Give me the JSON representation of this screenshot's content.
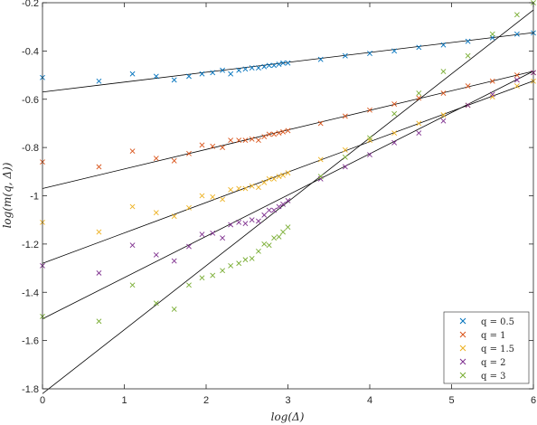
{
  "chart_data": {
    "type": "scatter",
    "title": "",
    "xlabel": "log(Δ)",
    "ylabel": "log(m(q, Δ))",
    "xlim": [
      0,
      6
    ],
    "ylim": [
      -1.8,
      -0.2
    ],
    "xticks": [
      "0",
      "1",
      "2",
      "3",
      "4",
      "5",
      "6"
    ],
    "yticks": [
      "-1.8",
      "-1.6",
      "-1.4",
      "-1.2",
      "-1",
      "-0.8",
      "-0.6",
      "-0.4",
      "-0.2"
    ],
    "grid": false,
    "legend_position": "bottom-right",
    "marker": "x",
    "series": [
      {
        "name": "q = 0.5",
        "color": "#0072BD",
        "fit": {
          "intercept": -0.57,
          "slope": 0.041
        },
        "points": [
          [
            0,
            -0.51
          ],
          [
            0.69,
            -0.525
          ],
          [
            1.1,
            -0.495
          ],
          [
            1.39,
            -0.505
          ],
          [
            1.61,
            -0.52
          ],
          [
            1.79,
            -0.505
          ],
          [
            1.95,
            -0.495
          ],
          [
            2.08,
            -0.49
          ],
          [
            2.2,
            -0.48
          ],
          [
            2.3,
            -0.495
          ],
          [
            2.4,
            -0.48
          ],
          [
            2.48,
            -0.475
          ],
          [
            2.56,
            -0.47
          ],
          [
            2.64,
            -0.47
          ],
          [
            2.71,
            -0.465
          ],
          [
            2.77,
            -0.46
          ],
          [
            2.83,
            -0.46
          ],
          [
            2.89,
            -0.455
          ],
          [
            2.94,
            -0.45
          ],
          [
            3.0,
            -0.45
          ],
          [
            3.4,
            -0.435
          ],
          [
            3.7,
            -0.42
          ],
          [
            4.0,
            -0.41
          ],
          [
            4.3,
            -0.4
          ],
          [
            4.6,
            -0.385
          ],
          [
            4.9,
            -0.375
          ],
          [
            5.2,
            -0.36
          ],
          [
            5.5,
            -0.345
          ],
          [
            5.8,
            -0.33
          ],
          [
            6.0,
            -0.325
          ]
        ]
      },
      {
        "name": "q = 1",
        "color": "#D95319",
        "fit": {
          "intercept": -0.97,
          "slope": 0.081
        },
        "points": [
          [
            0,
            -0.86
          ],
          [
            0.69,
            -0.88
          ],
          [
            1.1,
            -0.815
          ],
          [
            1.39,
            -0.845
          ],
          [
            1.61,
            -0.855
          ],
          [
            1.79,
            -0.825
          ],
          [
            1.95,
            -0.79
          ],
          [
            2.08,
            -0.795
          ],
          [
            2.2,
            -0.8
          ],
          [
            2.3,
            -0.77
          ],
          [
            2.4,
            -0.77
          ],
          [
            2.48,
            -0.77
          ],
          [
            2.56,
            -0.765
          ],
          [
            2.64,
            -0.77
          ],
          [
            2.71,
            -0.755
          ],
          [
            2.77,
            -0.745
          ],
          [
            2.83,
            -0.745
          ],
          [
            2.89,
            -0.74
          ],
          [
            2.94,
            -0.735
          ],
          [
            3.0,
            -0.73
          ],
          [
            3.4,
            -0.7
          ],
          [
            3.7,
            -0.67
          ],
          [
            4.0,
            -0.645
          ],
          [
            4.3,
            -0.62
          ],
          [
            4.6,
            -0.595
          ],
          [
            4.9,
            -0.575
          ],
          [
            5.2,
            -0.545
          ],
          [
            5.5,
            -0.525
          ],
          [
            5.8,
            -0.5
          ],
          [
            6.0,
            -0.49
          ]
        ]
      },
      {
        "name": "q = 1.5",
        "color": "#EDB120",
        "fit": {
          "intercept": -1.28,
          "slope": 0.126
        },
        "points": [
          [
            0,
            -1.11
          ],
          [
            0.69,
            -1.15
          ],
          [
            1.1,
            -1.045
          ],
          [
            1.39,
            -1.07
          ],
          [
            1.61,
            -1.085
          ],
          [
            1.79,
            -1.05
          ],
          [
            1.95,
            -1.0
          ],
          [
            2.08,
            -1.005
          ],
          [
            2.2,
            -1.015
          ],
          [
            2.3,
            -0.975
          ],
          [
            2.4,
            -0.97
          ],
          [
            2.48,
            -0.97
          ],
          [
            2.56,
            -0.96
          ],
          [
            2.64,
            -0.965
          ],
          [
            2.71,
            -0.945
          ],
          [
            2.77,
            -0.93
          ],
          [
            2.83,
            -0.93
          ],
          [
            2.89,
            -0.92
          ],
          [
            2.94,
            -0.915
          ],
          [
            3.0,
            -0.905
          ],
          [
            3.4,
            -0.85
          ],
          [
            3.7,
            -0.81
          ],
          [
            4.0,
            -0.77
          ],
          [
            4.3,
            -0.74
          ],
          [
            4.6,
            -0.7
          ],
          [
            4.9,
            -0.665
          ],
          [
            5.2,
            -0.625
          ],
          [
            5.5,
            -0.59
          ],
          [
            5.8,
            -0.545
          ],
          [
            6.0,
            -0.525
          ]
        ]
      },
      {
        "name": "q = 2",
        "color": "#7E2F8E",
        "fit": {
          "intercept": -1.51,
          "slope": 0.171
        },
        "points": [
          [
            0,
            -1.29
          ],
          [
            0.69,
            -1.32
          ],
          [
            1.1,
            -1.205
          ],
          [
            1.39,
            -1.245
          ],
          [
            1.61,
            -1.27
          ],
          [
            1.79,
            -1.21
          ],
          [
            1.95,
            -1.16
          ],
          [
            2.08,
            -1.155
          ],
          [
            2.2,
            -1.175
          ],
          [
            2.3,
            -1.12
          ],
          [
            2.4,
            -1.11
          ],
          [
            2.48,
            -1.115
          ],
          [
            2.56,
            -1.1
          ],
          [
            2.64,
            -1.105
          ],
          [
            2.71,
            -1.08
          ],
          [
            2.77,
            -1.06
          ],
          [
            2.83,
            -1.06
          ],
          [
            2.89,
            -1.045
          ],
          [
            2.94,
            -1.035
          ],
          [
            3.0,
            -1.02
          ],
          [
            3.4,
            -0.93
          ],
          [
            3.7,
            -0.88
          ],
          [
            4.0,
            -0.83
          ],
          [
            4.3,
            -0.78
          ],
          [
            4.6,
            -0.74
          ],
          [
            4.9,
            -0.69
          ],
          [
            5.2,
            -0.625
          ],
          [
            5.5,
            -0.58
          ],
          [
            5.8,
            -0.52
          ],
          [
            6.0,
            -0.49
          ]
        ]
      },
      {
        "name": "q = 3",
        "color": "#77AC30",
        "fit": {
          "intercept": -1.82,
          "slope": 0.265
        },
        "points": [
          [
            0,
            -1.5
          ],
          [
            0.69,
            -1.52
          ],
          [
            1.1,
            -1.37
          ],
          [
            1.39,
            -1.445
          ],
          [
            1.61,
            -1.47
          ],
          [
            1.79,
            -1.37
          ],
          [
            1.95,
            -1.34
          ],
          [
            2.08,
            -1.33
          ],
          [
            2.2,
            -1.31
          ],
          [
            2.3,
            -1.29
          ],
          [
            2.4,
            -1.28
          ],
          [
            2.48,
            -1.265
          ],
          [
            2.56,
            -1.26
          ],
          [
            2.64,
            -1.23
          ],
          [
            2.71,
            -1.2
          ],
          [
            2.77,
            -1.205
          ],
          [
            2.83,
            -1.175
          ],
          [
            2.89,
            -1.17
          ],
          [
            2.94,
            -1.15
          ],
          [
            3.0,
            -1.13
          ],
          [
            3.4,
            -0.92
          ],
          [
            3.7,
            -0.84
          ],
          [
            4.0,
            -0.76
          ],
          [
            4.3,
            -0.66
          ],
          [
            4.6,
            -0.575
          ],
          [
            4.9,
            -0.485
          ],
          [
            5.2,
            -0.42
          ],
          [
            5.5,
            -0.33
          ],
          [
            5.8,
            -0.25
          ],
          [
            6.0,
            -0.2
          ]
        ]
      }
    ]
  }
}
